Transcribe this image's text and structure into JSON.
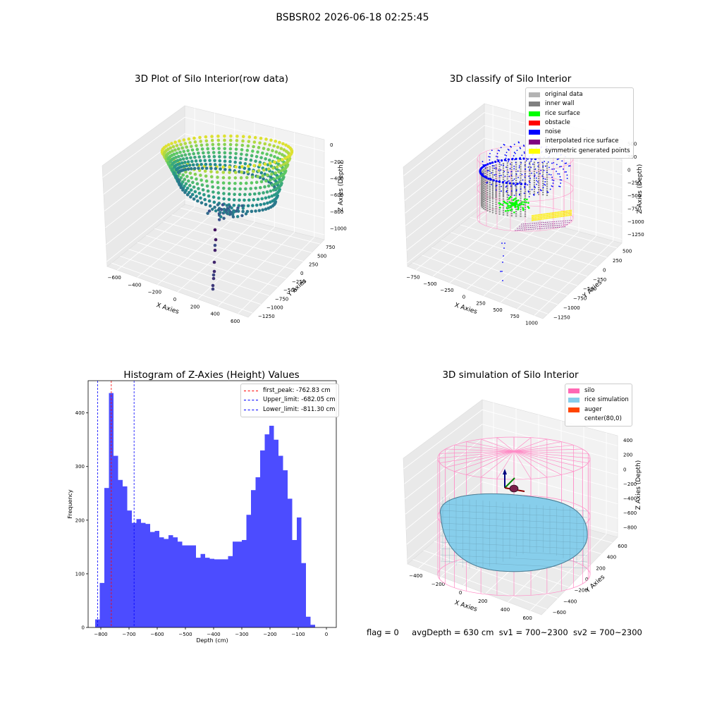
{
  "figure": {
    "title": "BSBSR02 2026-06-18 02:25:45"
  },
  "panels": {
    "raw": {
      "title": "3D Plot of Silo Interior(row data)",
      "xlabel": "X Axies",
      "ylabel": "Y Axies",
      "zlabel": "Z Axies (Depth)",
      "xticks": [
        "−600",
        "−400",
        "−200",
        "0",
        "200",
        "400",
        "600"
      ],
      "yticks": [
        "750",
        "500",
        "250",
        "0",
        "−250",
        "−500",
        "−750",
        "−1000",
        "−1250"
      ],
      "zticks": [
        "0",
        "−200",
        "−400",
        "−600",
        "−800",
        "−1000"
      ]
    },
    "classify": {
      "title": "3D classify of Silo Interior",
      "xlabel": "X Axies",
      "ylabel": "Y Axies",
      "zlabel": "Z Axies (Depth)",
      "xticks": [
        "−750",
        "−500",
        "−250",
        "0",
        "250",
        "500",
        "750",
        "1000"
      ],
      "yticks": [
        "500",
        "250",
        "0",
        "−250",
        "−500",
        "−750",
        "−1000",
        "−1250"
      ],
      "zticks": [
        "500",
        "250",
        "0",
        "−250",
        "−500",
        "−750",
        "−1000",
        "−1250"
      ],
      "legend": [
        {
          "label": "original data",
          "color": "#b3b3b3"
        },
        {
          "label": "inner wall",
          "color": "#808080"
        },
        {
          "label": "rice surface",
          "color": "#00ff00"
        },
        {
          "label": "obstacle",
          "color": "#ff0000"
        },
        {
          "label": "noise",
          "color": "#0000ff"
        },
        {
          "label": "interpolated rice surface",
          "color": "#800080"
        },
        {
          "label": "symmetric generated points",
          "color": "#ffff00"
        }
      ]
    },
    "simulation": {
      "title": "3D simulation of Silo Interior",
      "xlabel": "X Axies",
      "ylabel": "Y Axies",
      "zlabel": "Z Axies (Depth)",
      "xticks": [
        "−400",
        "−200",
        "0",
        "200",
        "400",
        "600"
      ],
      "yticks": [
        "600",
        "400",
        "200",
        "0",
        "−200",
        "−400",
        "−600"
      ],
      "zticks": [
        "400",
        "200",
        "0",
        "−200",
        "−400",
        "−600",
        "−800"
      ],
      "legend": [
        {
          "label": "silo",
          "color": "#ff69b4"
        },
        {
          "label": "rice simulation",
          "color": "#87ceeb"
        },
        {
          "label": "auger",
          "color": "#ff4500"
        },
        {
          "label": "center(80,0)",
          "color": "#ffffff"
        }
      ]
    },
    "footer": {
      "flag": "flag = 0",
      "avg_depth": "avgDepth = 630 cm",
      "sv1": "sv1 = 700~2300",
      "sv2": "sv2 = 700~2300"
    }
  },
  "chart_data": [
    {
      "type": "bar",
      "title": "Histogram of Z-Axies (Height) Values",
      "xlabel": "Depth (cm)",
      "ylabel": "Frequency",
      "xlim": [
        -845,
        35
      ],
      "ylim": [
        0,
        460
      ],
      "xticks": [
        -800,
        -700,
        -600,
        -500,
        -400,
        -300,
        -200,
        -100,
        0
      ],
      "yticks": [
        0,
        100,
        200,
        300,
        400
      ],
      "bin_width": 16.25,
      "bin_start": -820,
      "values": [
        15,
        83,
        260,
        437,
        320,
        275,
        263,
        218,
        195,
        202,
        195,
        193,
        178,
        180,
        168,
        165,
        172,
        168,
        160,
        153,
        153,
        153,
        130,
        137,
        130,
        128,
        127,
        127,
        127,
        133,
        160,
        160,
        163,
        210,
        256,
        280,
        330,
        360,
        376,
        350,
        320,
        293,
        240,
        163,
        205,
        120,
        20,
        5
      ],
      "color": "#0000ff",
      "lines": [
        {
          "label": "first_peak: -762.83 cm",
          "x": -762.83,
          "color": "#ff0000"
        },
        {
          "label": "Upper_limit: -682.05 cm",
          "x": -682.05,
          "color": "#0000ff"
        },
        {
          "label": "Lower_limit: -811.30 cm",
          "x": -811.3,
          "color": "#0000ff"
        }
      ],
      "legend_position": "top-right"
    }
  ]
}
